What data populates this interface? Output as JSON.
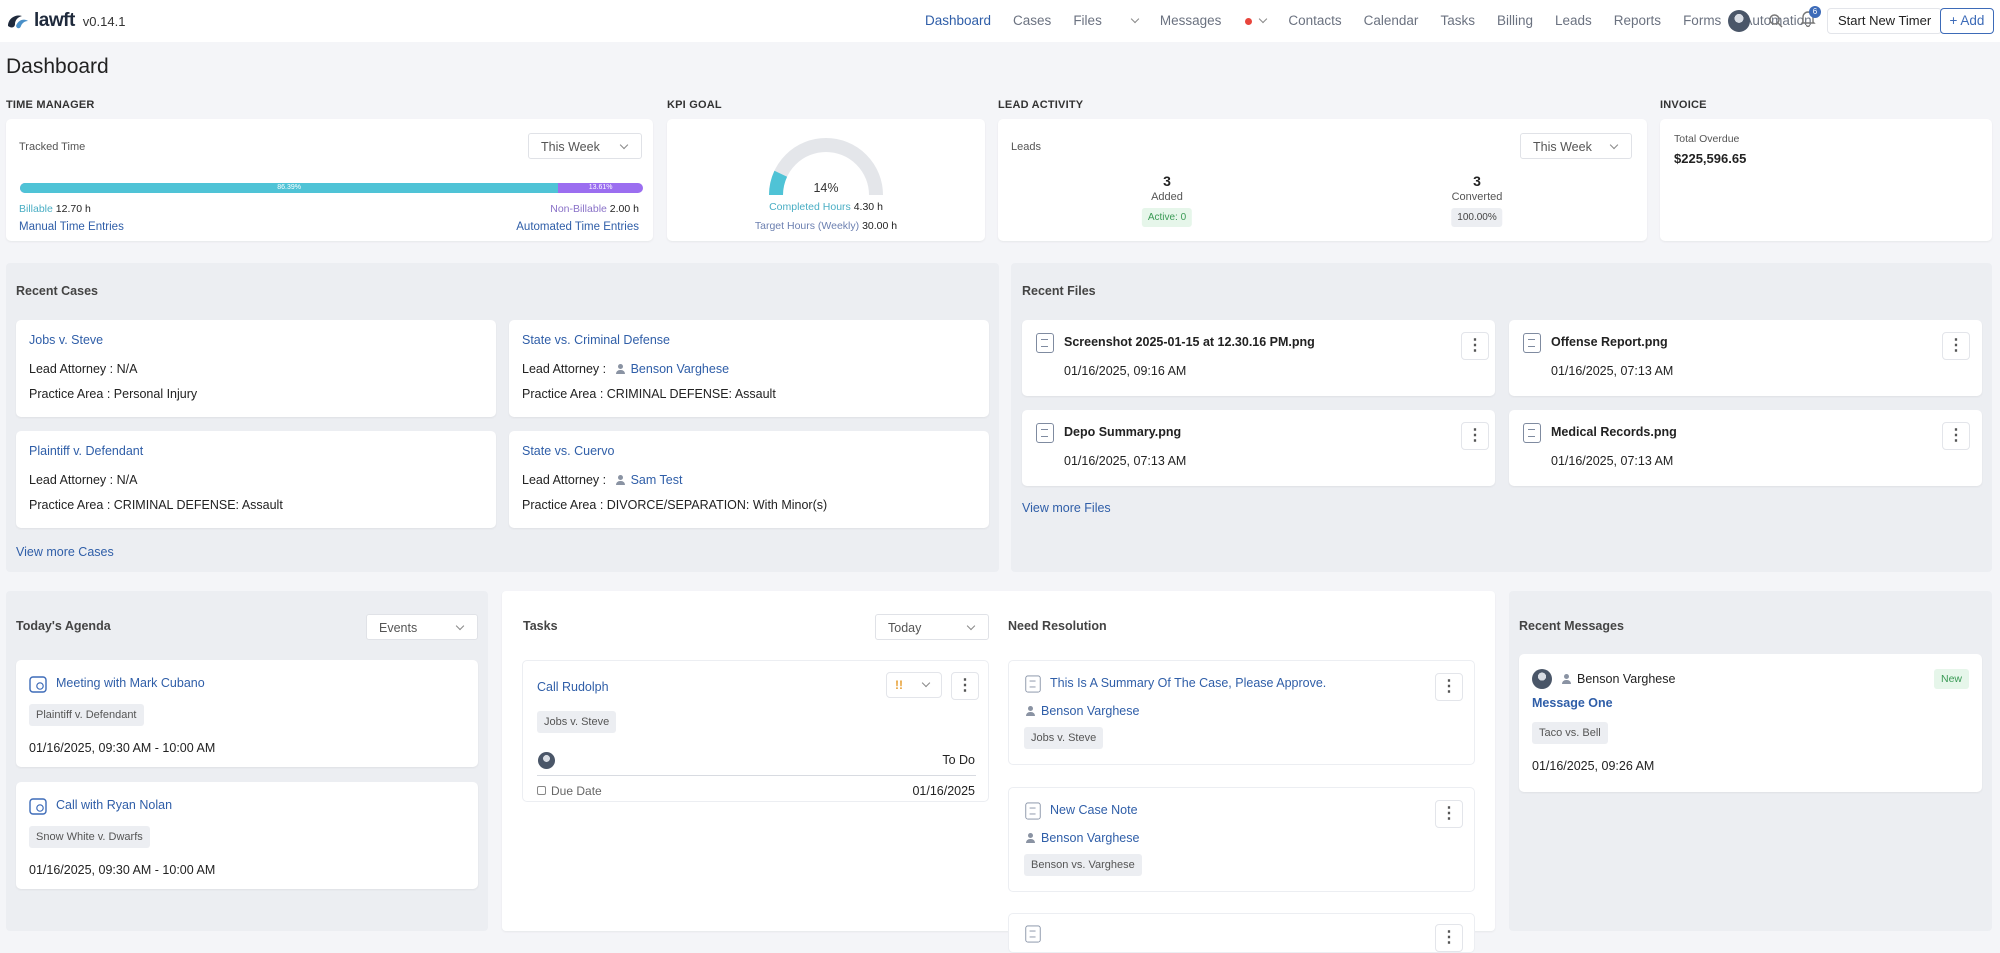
{
  "app": {
    "brand": "lawft",
    "version": "v0.14.1"
  },
  "nav": {
    "items": [
      "Dashboard",
      "Cases",
      "Files",
      "Messages",
      "Contacts",
      "Calendar",
      "Tasks",
      "Billing",
      "Leads",
      "Reports",
      "Forms",
      "Automation"
    ],
    "notification_count": "6",
    "start_timer": "Start New Timer",
    "add": "+ Add"
  },
  "page_title": "Dashboard",
  "time_manager": {
    "section": "TIME MANAGER",
    "label": "Tracked Time",
    "period": "This Week",
    "billable_pct": "86.39%",
    "nonbillable_pct": "13.61%",
    "billable_fraction": 0.8639,
    "billable_label": "Billable",
    "billable_value": "12.70 h",
    "nonbillable_label": "Non-Billable",
    "nonbillable_value": "2.00 h",
    "manual_link": "Manual Time Entries",
    "automated_link": "Automated Time Entries"
  },
  "kpi": {
    "section": "KPI GOAL",
    "percent": "14%",
    "fraction": 0.14,
    "completed_label": "Completed Hours",
    "completed_value": "4.30 h",
    "target_label": "Target Hours (Weekly)",
    "target_value": "30.00 h"
  },
  "lead_activity": {
    "section": "LEAD ACTIVITY",
    "label": "Leads",
    "period": "This Week",
    "added_count": "3",
    "added_label": "Added",
    "active_badge": "Active: 0",
    "converted_count": "3",
    "converted_label": "Converted",
    "converted_badge": "100.00%"
  },
  "invoice": {
    "section": "INVOICE",
    "label": "Total Overdue",
    "amount": "$225,596.65"
  },
  "recent_cases": {
    "title": "Recent Cases",
    "attorney_label": "Lead Attorney :",
    "practice_label": "Practice Area :",
    "cases": [
      {
        "name": "Jobs v. Steve",
        "attorney": "N/A",
        "practice": "Personal Injury"
      },
      {
        "name": "State vs. Criminal Defense",
        "attorney": "Benson Varghese",
        "practice": "CRIMINAL DEFENSE: Assault"
      },
      {
        "name": "Plaintiff v. Defendant",
        "attorney": "N/A",
        "practice": "CRIMINAL DEFENSE: Assault"
      },
      {
        "name": "State vs. Cuervo",
        "attorney": "Sam Test",
        "practice": "DIVORCE/SEPARATION: With Minor(s)"
      }
    ],
    "view_more": "View more Cases"
  },
  "recent_files": {
    "title": "Recent Files",
    "files": [
      {
        "name": "Screenshot 2025-01-15 at 12.30.16 PM.png",
        "date": "01/16/2025, 09:16 AM"
      },
      {
        "name": "Offense Report.png",
        "date": "01/16/2025, 07:13 AM"
      },
      {
        "name": "Depo Summary.png",
        "date": "01/16/2025, 07:13 AM"
      },
      {
        "name": "Medical Records.png",
        "date": "01/16/2025, 07:13 AM"
      }
    ],
    "view_more": "View more Files"
  },
  "agenda": {
    "title": "Today's Agenda",
    "filter": "Events",
    "events": [
      {
        "name": "Meeting with Mark Cubano",
        "case": "Plaintiff v. Defendant",
        "time": "01/16/2025, 09:30 AM - 10:00 AM"
      },
      {
        "name": "Call with Ryan Nolan",
        "case": "Snow White v. Dwarfs",
        "time": "01/16/2025, 09:30 AM - 10:00 AM"
      }
    ]
  },
  "tasks": {
    "title": "Tasks",
    "filter": "Today",
    "task": {
      "name": "Call Rudolph",
      "priority": "!!",
      "case": "Jobs v. Steve",
      "status": "To Do",
      "due_label": "Due Date",
      "due_date": "01/16/2025"
    }
  },
  "need_resolution": {
    "title": "Need Resolution",
    "items": [
      {
        "name": "This Is A Summary Of The Case, Please Approve.",
        "user": "Benson Varghese",
        "case": "Jobs v. Steve"
      },
      {
        "name": "New Case Note",
        "user": "Benson Varghese",
        "case": "Benson vs. Varghese"
      }
    ]
  },
  "recent_messages": {
    "title": "Recent Messages",
    "message": {
      "sender": "Benson Varghese",
      "badge": "New",
      "subject": "Message One",
      "case": "Taco vs. Bell",
      "date": "01/16/2025, 09:26 AM"
    }
  },
  "colors": {
    "accent": "#2f5ea8",
    "billable": "#4fc3d6",
    "nonbillable": "#9b6ef0"
  }
}
